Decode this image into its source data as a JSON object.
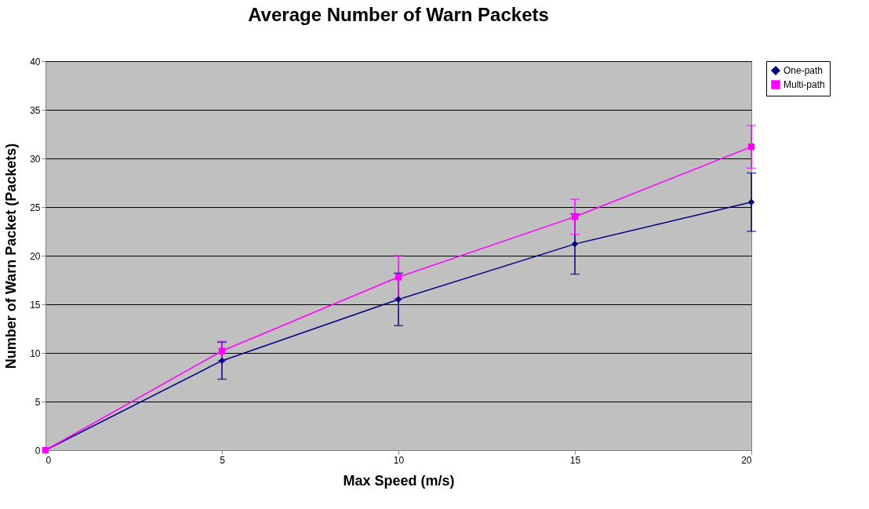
{
  "chart_data": {
    "type": "line",
    "title": "Average Number of Warn Packets",
    "xlabel": "Max Speed (m/s)",
    "ylabel": "Number of Warn Packet (Packets)",
    "x": [
      0,
      5,
      10,
      15,
      20
    ],
    "series": [
      {
        "name": "One-path",
        "color": "#000080",
        "marker": "diamond",
        "values": [
          0,
          9.2,
          15.5,
          21.2,
          25.5
        ],
        "errors": [
          null,
          1.9,
          2.7,
          3.1,
          3.0
        ]
      },
      {
        "name": "Multi-path",
        "color": "#ff00ff",
        "marker": "square",
        "values": [
          0,
          10.2,
          17.8,
          24.0,
          31.2
        ],
        "errors": [
          null,
          1.0,
          2.2,
          1.8,
          2.2
        ]
      }
    ],
    "xlim": [
      0,
      20
    ],
    "xticks": [
      0,
      5,
      10,
      15,
      20
    ],
    "ylim": [
      0,
      40
    ],
    "yticks": [
      0,
      5,
      10,
      15,
      20,
      25,
      30,
      35,
      40
    ],
    "grid": "y",
    "legend": "right",
    "line_style": "solid"
  }
}
